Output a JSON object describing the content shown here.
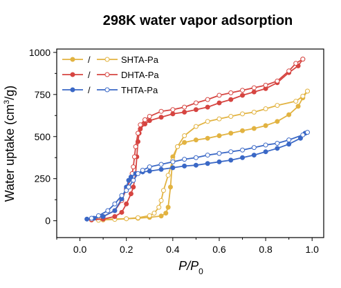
{
  "chart_data": {
    "type": "line",
    "title": "298K water vapor adsorption",
    "xlabel": "P/P",
    "xlabel_sub": "0",
    "ylabel": "Water uptake (cm",
    "ylabel_sup": "3",
    "ylabel_end": "/g)",
    "xlim": [
      -0.1,
      1.05
    ],
    "ylim": [
      -100,
      1020
    ],
    "xticks": [
      "0.0",
      "0.2",
      "0.4",
      "0.6",
      "0.8",
      "1.0"
    ],
    "xtick_values": [
      0.0,
      0.2,
      0.4,
      0.6,
      0.8,
      1.0
    ],
    "yticks": [
      "0",
      "250",
      "500",
      "750",
      "1000"
    ],
    "ytick_values": [
      0,
      250,
      500,
      750,
      1000
    ],
    "grid": false,
    "legend_position": "top-left",
    "legend_separator": "/",
    "series": [
      {
        "name": "SHTA-Pa",
        "color": "#e2b341",
        "adsorption": [
          [
            0.05,
            5
          ],
          [
            0.1,
            8
          ],
          [
            0.15,
            10
          ],
          [
            0.2,
            12
          ],
          [
            0.25,
            15
          ],
          [
            0.3,
            20
          ],
          [
            0.35,
            28
          ],
          [
            0.37,
            45
          ],
          [
            0.38,
            80
          ],
          [
            0.39,
            200
          ],
          [
            0.4,
            380
          ],
          [
            0.42,
            440
          ],
          [
            0.45,
            465
          ],
          [
            0.5,
            480
          ],
          [
            0.55,
            490
          ],
          [
            0.6,
            505
          ],
          [
            0.65,
            520
          ],
          [
            0.7,
            535
          ],
          [
            0.75,
            548
          ],
          [
            0.8,
            565
          ],
          [
            0.85,
            590
          ],
          [
            0.9,
            630
          ],
          [
            0.94,
            680
          ],
          [
            0.96,
            730
          ],
          [
            0.98,
            770
          ]
        ],
        "desorption": [
          [
            0.98,
            770
          ],
          [
            0.96,
            740
          ],
          [
            0.93,
            710
          ],
          [
            0.85,
            685
          ],
          [
            0.8,
            665
          ],
          [
            0.75,
            645
          ],
          [
            0.7,
            635
          ],
          [
            0.65,
            620
          ],
          [
            0.6,
            605
          ],
          [
            0.55,
            590
          ],
          [
            0.5,
            560
          ],
          [
            0.45,
            505
          ],
          [
            0.42,
            440
          ],
          [
            0.4,
            360
          ],
          [
            0.38,
            270
          ],
          [
            0.36,
            180
          ],
          [
            0.35,
            120
          ],
          [
            0.34,
            80
          ],
          [
            0.32,
            45
          ],
          [
            0.3,
            30
          ],
          [
            0.25,
            18
          ],
          [
            0.2,
            12
          ],
          [
            0.15,
            8
          ],
          [
            0.1,
            5
          ],
          [
            0.08,
            3
          ]
        ]
      },
      {
        "name": "DHTA-Pa",
        "color": "#d64541",
        "adsorption": [
          [
            0.05,
            5
          ],
          [
            0.1,
            10
          ],
          [
            0.15,
            25
          ],
          [
            0.18,
            50
          ],
          [
            0.2,
            100
          ],
          [
            0.22,
            160
          ],
          [
            0.23,
            200
          ],
          [
            0.24,
            280
          ],
          [
            0.245,
            380
          ],
          [
            0.25,
            470
          ],
          [
            0.255,
            520
          ],
          [
            0.26,
            545
          ],
          [
            0.28,
            575
          ],
          [
            0.3,
            595
          ],
          [
            0.35,
            615
          ],
          [
            0.4,
            635
          ],
          [
            0.45,
            645
          ],
          [
            0.5,
            660
          ],
          [
            0.55,
            675
          ],
          [
            0.6,
            700
          ],
          [
            0.65,
            720
          ],
          [
            0.7,
            745
          ],
          [
            0.75,
            765
          ],
          [
            0.8,
            785
          ],
          [
            0.85,
            820
          ],
          [
            0.9,
            880
          ],
          [
            0.94,
            920
          ],
          [
            0.96,
            960
          ]
        ],
        "desorption": [
          [
            0.96,
            960
          ],
          [
            0.93,
            935
          ],
          [
            0.9,
            890
          ],
          [
            0.85,
            830
          ],
          [
            0.8,
            805
          ],
          [
            0.75,
            790
          ],
          [
            0.7,
            775
          ],
          [
            0.65,
            760
          ],
          [
            0.6,
            745
          ],
          [
            0.55,
            720
          ],
          [
            0.5,
            700
          ],
          [
            0.45,
            675
          ],
          [
            0.4,
            660
          ],
          [
            0.35,
            650
          ],
          [
            0.3,
            620
          ],
          [
            0.28,
            600
          ],
          [
            0.26,
            570
          ],
          [
            0.25,
            520
          ],
          [
            0.24,
            440
          ],
          [
            0.235,
            380
          ],
          [
            0.23,
            320
          ],
          [
            0.225,
            280
          ],
          [
            0.22,
            250
          ],
          [
            0.2,
            190
          ],
          [
            0.18,
            120
          ],
          [
            0.15,
            60
          ],
          [
            0.1,
            25
          ],
          [
            0.05,
            8
          ]
        ]
      },
      {
        "name": "THTA-Pa",
        "color": "#3a68c6",
        "adsorption": [
          [
            0.03,
            10
          ],
          [
            0.06,
            15
          ],
          [
            0.1,
            25
          ],
          [
            0.15,
            60
          ],
          [
            0.18,
            130
          ],
          [
            0.2,
            200
          ],
          [
            0.21,
            240
          ],
          [
            0.22,
            260
          ],
          [
            0.24,
            280
          ],
          [
            0.27,
            290
          ],
          [
            0.3,
            295
          ],
          [
            0.35,
            305
          ],
          [
            0.4,
            315
          ],
          [
            0.45,
            325
          ],
          [
            0.5,
            330
          ],
          [
            0.55,
            340
          ],
          [
            0.6,
            350
          ],
          [
            0.65,
            360
          ],
          [
            0.7,
            375
          ],
          [
            0.75,
            390
          ],
          [
            0.8,
            410
          ],
          [
            0.85,
            430
          ],
          [
            0.9,
            455
          ],
          [
            0.95,
            490
          ],
          [
            0.97,
            520
          ]
        ],
        "desorption": [
          [
            0.98,
            525
          ],
          [
            0.96,
            510
          ],
          [
            0.9,
            480
          ],
          [
            0.85,
            460
          ],
          [
            0.8,
            450
          ],
          [
            0.75,
            435
          ],
          [
            0.7,
            420
          ],
          [
            0.65,
            410
          ],
          [
            0.6,
            400
          ],
          [
            0.55,
            390
          ],
          [
            0.5,
            375
          ],
          [
            0.45,
            365
          ],
          [
            0.4,
            350
          ],
          [
            0.35,
            335
          ],
          [
            0.3,
            320
          ],
          [
            0.27,
            300
          ],
          [
            0.25,
            280
          ],
          [
            0.23,
            240
          ],
          [
            0.21,
            200
          ],
          [
            0.2,
            180
          ],
          [
            0.18,
            150
          ],
          [
            0.15,
            100
          ],
          [
            0.12,
            60
          ],
          [
            0.08,
            30
          ],
          [
            0.05,
            15
          ]
        ]
      }
    ]
  }
}
